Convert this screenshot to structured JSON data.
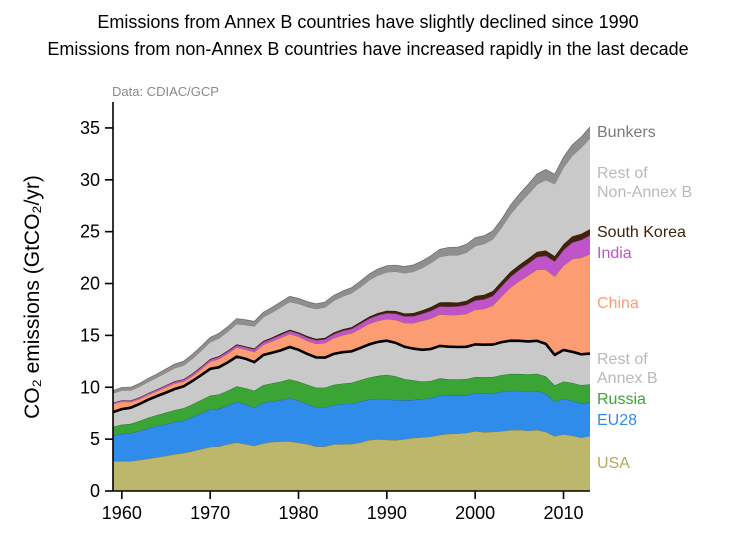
{
  "title": {
    "line1": "Emissions from Annex B countries have slightly declined since 1990",
    "line2": "Emissions from non-Annex B countries have increased rapidly in the last decade"
  },
  "source_note": "Data: CDIAC/GCP",
  "chart_data": {
    "type": "area",
    "stacked": true,
    "title": "",
    "xlabel": "",
    "ylabel": "CO₂ emissions (GtCO₂/yr)",
    "xlim": [
      1959,
      2013
    ],
    "ylim": [
      0,
      37.5
    ],
    "yticks": [
      0,
      5,
      10,
      15,
      20,
      25,
      30,
      35
    ],
    "xticks": [
      1960,
      1970,
      1980,
      1990,
      2000,
      2010
    ],
    "grid": false,
    "legend_position": "right",
    "annex_b_divider_color": "#000000",
    "x": [
      1959,
      1960,
      1961,
      1962,
      1963,
      1964,
      1965,
      1966,
      1967,
      1968,
      1969,
      1970,
      1971,
      1972,
      1973,
      1974,
      1975,
      1976,
      1977,
      1978,
      1979,
      1980,
      1981,
      1982,
      1983,
      1984,
      1985,
      1986,
      1987,
      1988,
      1989,
      1990,
      1991,
      1992,
      1993,
      1994,
      1995,
      1996,
      1997,
      1998,
      1999,
      2000,
      2001,
      2002,
      2003,
      2004,
      2005,
      2006,
      2007,
      2008,
      2009,
      2010,
      2011,
      2012,
      2013
    ],
    "series": [
      {
        "name": "USA",
        "legend_label": "USA",
        "color": "#bdb76b",
        "label_color": "#b3aa56",
        "values": [
          2.88,
          2.89,
          2.88,
          2.99,
          3.12,
          3.26,
          3.39,
          3.56,
          3.66,
          3.85,
          4.05,
          4.25,
          4.29,
          4.51,
          4.69,
          4.52,
          4.35,
          4.6,
          4.73,
          4.77,
          4.8,
          4.66,
          4.52,
          4.29,
          4.29,
          4.51,
          4.51,
          4.53,
          4.68,
          4.92,
          4.99,
          4.95,
          4.91,
          5.0,
          5.12,
          5.19,
          5.24,
          5.42,
          5.5,
          5.54,
          5.6,
          5.77,
          5.68,
          5.72,
          5.77,
          5.87,
          5.89,
          5.81,
          5.9,
          5.71,
          5.29,
          5.48,
          5.34,
          5.15,
          5.3
        ]
      },
      {
        "name": "EU28",
        "legend_label": "EU28",
        "color": "#2f8ceb",
        "label_color": "#2f8ceb",
        "values": [
          2.48,
          2.62,
          2.67,
          2.79,
          2.94,
          3.0,
          3.06,
          3.09,
          3.13,
          3.28,
          3.45,
          3.62,
          3.63,
          3.72,
          3.91,
          3.83,
          3.69,
          3.92,
          3.91,
          3.99,
          4.17,
          4.04,
          3.87,
          3.79,
          3.77,
          3.79,
          3.89,
          3.9,
          3.95,
          3.9,
          3.92,
          3.88,
          3.86,
          3.74,
          3.67,
          3.66,
          3.73,
          3.82,
          3.73,
          3.73,
          3.65,
          3.66,
          3.74,
          3.71,
          3.8,
          3.81,
          3.78,
          3.78,
          3.74,
          3.66,
          3.32,
          3.43,
          3.35,
          3.3,
          3.25
        ]
      },
      {
        "name": "Russia",
        "legend_label": "Russia",
        "color": "#3aa435",
        "label_color": "#3aa435",
        "values": [
          0.85,
          0.89,
          0.93,
          0.98,
          1.02,
          1.07,
          1.12,
          1.16,
          1.2,
          1.24,
          1.28,
          1.34,
          1.39,
          1.45,
          1.5,
          1.57,
          1.64,
          1.69,
          1.74,
          1.8,
          1.81,
          1.86,
          1.87,
          1.89,
          1.91,
          1.94,
          1.96,
          2.0,
          2.07,
          2.12,
          2.2,
          2.38,
          2.3,
          2.06,
          1.89,
          1.71,
          1.64,
          1.62,
          1.54,
          1.51,
          1.55,
          1.56,
          1.56,
          1.56,
          1.61,
          1.62,
          1.62,
          1.67,
          1.67,
          1.7,
          1.58,
          1.65,
          1.73,
          1.76,
          1.75
        ]
      },
      {
        "name": "Rest of Annex B",
        "legend_label": "Rest of\nAnnex B",
        "color": "#c9c9c9",
        "label_color": "#b9b9b9",
        "annex_b_boundary": true,
        "values": [
          1.4,
          1.5,
          1.55,
          1.63,
          1.72,
          1.83,
          1.92,
          2.02,
          2.1,
          2.24,
          2.39,
          2.56,
          2.62,
          2.72,
          2.86,
          2.83,
          2.74,
          2.89,
          2.94,
          2.99,
          3.1,
          3.05,
          2.96,
          2.9,
          2.89,
          2.98,
          3.02,
          3.03,
          3.09,
          3.19,
          3.26,
          3.28,
          3.22,
          3.1,
          3.05,
          3.05,
          3.08,
          3.13,
          3.14,
          3.1,
          3.1,
          3.14,
          3.12,
          3.12,
          3.17,
          3.19,
          3.19,
          3.16,
          3.17,
          3.11,
          2.93,
          3.03,
          3.0,
          2.97,
          2.95
        ]
      },
      {
        "name": "China",
        "legend_label": "China",
        "color": "#fb9c73",
        "label_color": "#fb9c73",
        "values": [
          0.78,
          0.72,
          0.55,
          0.48,
          0.48,
          0.48,
          0.52,
          0.55,
          0.48,
          0.49,
          0.58,
          0.7,
          0.8,
          0.85,
          0.88,
          0.89,
          0.99,
          1.0,
          1.1,
          1.24,
          1.26,
          1.28,
          1.26,
          1.33,
          1.41,
          1.53,
          1.66,
          1.74,
          1.87,
          2.0,
          2.05,
          2.1,
          2.21,
          2.31,
          2.47,
          2.8,
          2.96,
          3.04,
          3.07,
          3.1,
          3.17,
          3.35,
          3.47,
          3.77,
          4.44,
          5.15,
          5.77,
          6.37,
          6.86,
          7.18,
          7.58,
          8.15,
          8.95,
          9.32,
          9.6
        ]
      },
      {
        "name": "India",
        "legend_label": "India",
        "color": "#bf53c8",
        "label_color": "#bf53c8",
        "values": [
          0.12,
          0.12,
          0.13,
          0.14,
          0.15,
          0.15,
          0.17,
          0.17,
          0.18,
          0.19,
          0.2,
          0.2,
          0.21,
          0.22,
          0.22,
          0.23,
          0.25,
          0.26,
          0.27,
          0.28,
          0.29,
          0.29,
          0.32,
          0.34,
          0.36,
          0.38,
          0.41,
          0.43,
          0.46,
          0.49,
          0.53,
          0.56,
          0.6,
          0.63,
          0.65,
          0.68,
          0.73,
          0.77,
          0.8,
          0.82,
          0.87,
          0.89,
          0.9,
          0.93,
          0.96,
          1.02,
          1.07,
          1.14,
          1.22,
          1.31,
          1.43,
          1.49,
          1.59,
          1.71,
          1.8
        ]
      },
      {
        "name": "South Korea",
        "legend_label": "South Korea",
        "color": "#40230a",
        "label_color": "#40230a",
        "values": [
          0.01,
          0.01,
          0.02,
          0.02,
          0.02,
          0.03,
          0.03,
          0.04,
          0.04,
          0.05,
          0.06,
          0.06,
          0.07,
          0.07,
          0.08,
          0.09,
          0.09,
          0.11,
          0.12,
          0.13,
          0.13,
          0.13,
          0.14,
          0.14,
          0.15,
          0.16,
          0.16,
          0.17,
          0.18,
          0.2,
          0.22,
          0.24,
          0.26,
          0.28,
          0.31,
          0.34,
          0.37,
          0.4,
          0.43,
          0.37,
          0.4,
          0.44,
          0.45,
          0.47,
          0.48,
          0.49,
          0.49,
          0.49,
          0.51,
          0.52,
          0.52,
          0.57,
          0.59,
          0.59,
          0.6
        ]
      },
      {
        "name": "Rest of Non-Annex B",
        "legend_label": "Rest of\nNon-Annex B",
        "color": "#c9c9c9",
        "label_color": "#b9b9b9",
        "values": [
          0.9,
          0.95,
          0.98,
          1.03,
          1.08,
          1.14,
          1.2,
          1.27,
          1.33,
          1.42,
          1.52,
          1.63,
          1.73,
          1.84,
          1.98,
          2.06,
          2.14,
          2.28,
          2.41,
          2.53,
          2.68,
          2.76,
          2.82,
          2.88,
          2.95,
          3.07,
          3.16,
          3.27,
          3.37,
          3.52,
          3.63,
          3.71,
          3.8,
          3.89,
          3.99,
          4.09,
          4.25,
          4.39,
          4.52,
          4.56,
          4.65,
          4.81,
          4.9,
          5.0,
          5.19,
          5.55,
          5.9,
          6.2,
          6.5,
          6.8,
          6.95,
          7.4,
          7.8,
          8.3,
          8.8
        ]
      },
      {
        "name": "Bunkers",
        "legend_label": "Bunkers",
        "color": "#8f8f8f",
        "label_color": "#7a7a7a",
        "values": [
          0.27,
          0.29,
          0.3,
          0.31,
          0.33,
          0.35,
          0.37,
          0.39,
          0.4,
          0.43,
          0.44,
          0.46,
          0.47,
          0.48,
          0.51,
          0.49,
          0.47,
          0.48,
          0.49,
          0.51,
          0.53,
          0.52,
          0.5,
          0.49,
          0.49,
          0.51,
          0.51,
          0.54,
          0.56,
          0.59,
          0.61,
          0.63,
          0.61,
          0.64,
          0.65,
          0.66,
          0.69,
          0.72,
          0.75,
          0.77,
          0.79,
          0.81,
          0.79,
          0.79,
          0.8,
          0.87,
          0.92,
          0.95,
          1.0,
          1.01,
          0.95,
          1.0,
          1.03,
          1.04,
          1.06
        ]
      }
    ]
  }
}
